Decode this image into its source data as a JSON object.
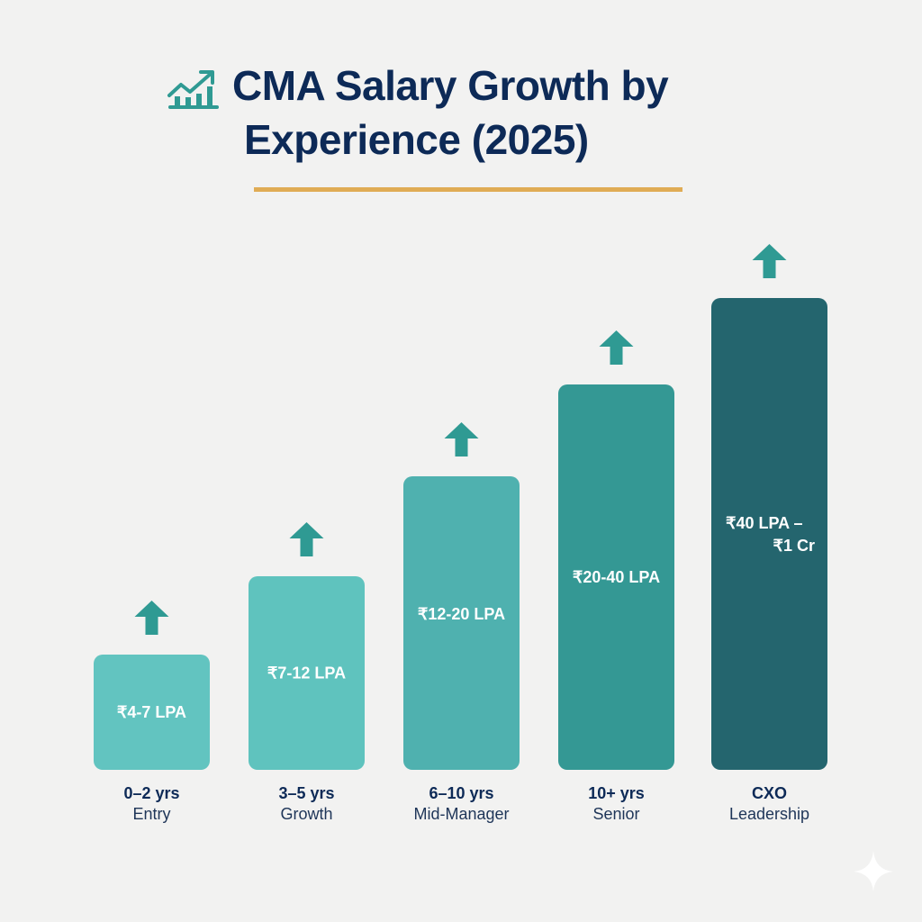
{
  "chart_data": {
    "type": "bar",
    "title": "CMA Salary Growth by Experience (2025)",
    "title_lines": [
      "CMA Salary Growth by",
      "Experience (2025)"
    ],
    "title_icon": "chart-growth-icon",
    "unit": "LPA",
    "categories": [
      "0–2 yrs",
      "3–5 yrs",
      "6–10 yrs",
      "10+ yrs",
      "CXO"
    ],
    "subcategories": [
      "Entry",
      "Growth",
      "Mid-Manager",
      "Senior",
      "Leadership"
    ],
    "value_labels": [
      [
        "₹4-7 LPA"
      ],
      [
        "₹7-12 LPA"
      ],
      [
        "₹12-20 LPA"
      ],
      [
        "₹20-40 LPA"
      ],
      [
        "₹40 LPA –",
        "₹1 Cr"
      ]
    ],
    "ranges": [
      [
        4,
        7
      ],
      [
        7,
        12
      ],
      [
        12,
        20
      ],
      [
        20,
        40
      ],
      [
        40,
        100
      ]
    ],
    "colors": [
      "#62c4c0",
      "#5fc3be",
      "#4fb1af",
      "#349894",
      "#24656e"
    ],
    "arrow_color": "#2f9a93",
    "accent_color": "#e0ac55",
    "grid": false,
    "legend": "none"
  }
}
